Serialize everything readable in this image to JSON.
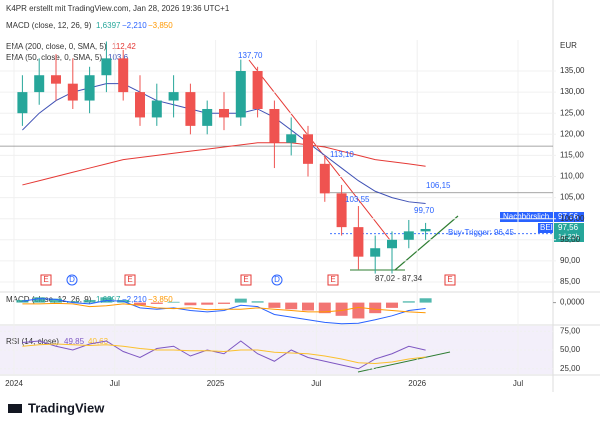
{
  "header": "K4PR erstellt mit TradingView.com, Jan 28, 2026 19:36 UTC+1",
  "currency": "EUR",
  "brand": "TradingView",
  "indicator_legend": {
    "macd": {
      "name": "MACD (close, 12, 26, 9)",
      "values": [
        "1,6397",
        "−2,210",
        "−3,850"
      ]
    },
    "ema200": {
      "name": "EMA (200, close, 0, SMA, 5)",
      "value": "112,42"
    },
    "ema50": {
      "name": "EMA (50, close, 0, SMA, 5)",
      "value": "103,6"
    },
    "rsi": {
      "name": "RSI (14, close)",
      "values": [
        "49,85",
        "40,63"
      ]
    }
  },
  "annotations": [
    "137,70",
    "113,10",
    "106,15",
    "103,55",
    "99,70",
    "Buy-Trigger: 96,45",
    "87,02 - 87,34"
  ],
  "price_badges": {
    "after_hours": "Nachbörslich",
    "after_hours_price": "97,56",
    "symbol": "BEI",
    "last_price": "97,56",
    "countdown": "1d 23h"
  },
  "events": [
    "E",
    "D",
    "E",
    "E",
    "D",
    "E",
    "E"
  ],
  "chart_data": [
    {
      "type": "candlestick",
      "categories": [
        "2024",
        null,
        null,
        null,
        null,
        null,
        "Jul",
        null,
        null,
        null,
        null,
        null,
        "2025",
        null,
        null,
        null,
        null,
        null,
        "Jul",
        null,
        null,
        null,
        null,
        null,
        "2026",
        null,
        null,
        null,
        null,
        null,
        "Jul",
        null,
        null
      ],
      "open": [
        125,
        130,
        134,
        132,
        128,
        134,
        138,
        130,
        124,
        128,
        130,
        122,
        126,
        124,
        135,
        126,
        118,
        120,
        113,
        106,
        98,
        91,
        93,
        95,
        97,
        null,
        null,
        null,
        null,
        null,
        null,
        null,
        null
      ],
      "high": [
        134,
        138,
        139,
        138,
        136,
        142,
        140,
        134,
        132,
        134,
        132,
        128,
        130,
        137.7,
        136,
        128,
        124,
        122,
        115,
        108,
        103,
        96,
        97,
        99.7,
        99,
        null,
        null,
        null,
        null,
        null,
        null,
        null,
        null
      ],
      "low": [
        122,
        127,
        128,
        126,
        125,
        130,
        128,
        122,
        122,
        124,
        120,
        120,
        121,
        122,
        124,
        112,
        115,
        110,
        104,
        96,
        88,
        87,
        87.02,
        93,
        95,
        null,
        null,
        null,
        null,
        null,
        null,
        null,
        null
      ],
      "close": [
        130,
        134,
        132,
        128,
        134,
        138,
        130,
        124,
        128,
        130,
        122,
        126,
        124,
        135,
        126,
        118,
        120,
        113,
        106,
        98,
        91,
        93,
        95,
        97,
        97.56,
        null,
        null,
        null,
        null,
        null,
        null,
        null,
        null
      ],
      "up_color": "#26a69a",
      "down_color": "#ef5350",
      "series": [
        {
          "name": "EMA 200",
          "color": "#e53935",
          "values": [
            108,
            109,
            110,
            111,
            112,
            113,
            114,
            114.5,
            115,
            115.5,
            116,
            116.5,
            117,
            117.5,
            118,
            118,
            118,
            117.5,
            117,
            116,
            115,
            114,
            113.5,
            113,
            112.42,
            null,
            null,
            null,
            null,
            null,
            null,
            null,
            null
          ]
        },
        {
          "name": "EMA 50",
          "color": "#3f51b5",
          "values": [
            121,
            125,
            128,
            130,
            131,
            132,
            132,
            130,
            128,
            127,
            126,
            125,
            125,
            125,
            126,
            124,
            121,
            118,
            115,
            112,
            109,
            106.5,
            105,
            104,
            103.6,
            null,
            null,
            null,
            null,
            null,
            null,
            null,
            null
          ]
        }
      ],
      "levels": [
        117.2,
        106.15,
        96.45
      ],
      "ylim": [
        83.1,
        142.35
      ],
      "yticks": [
        {
          "value": 85,
          "label": "85,00"
        },
        {
          "value": 90,
          "label": "90,00"
        },
        {
          "value": 95,
          "label": "95,00"
        },
        {
          "value": 100,
          "label": "100,00"
        },
        {
          "value": 105,
          "label": "105,00"
        },
        {
          "value": 110,
          "label": "110,00"
        },
        {
          "value": 115,
          "label": "115,00"
        },
        {
          "value": 120,
          "label": "120,00"
        },
        {
          "value": 125,
          "label": "125,00"
        },
        {
          "value": 130,
          "label": "130,00"
        },
        {
          "value": 135,
          "label": "135,00"
        }
      ]
    },
    {
      "type": "macd",
      "values": [
        1,
        2,
        1.5,
        0.5,
        1,
        2,
        1,
        -1,
        -0.5,
        0.3,
        -1,
        -0.8,
        -0.5,
        1.5,
        0.5,
        -2,
        -2.5,
        -3,
        -4,
        -5,
        -6,
        -4,
        -2,
        0.5,
        1.6397,
        null,
        null,
        null,
        null,
        null,
        null,
        null,
        null
      ],
      "series": [
        {
          "name": "MACD",
          "color": "#2962ff",
          "values": [
            0.5,
            1.5,
            1.2,
            0,
            -0.5,
            0.8,
            0.5,
            -2,
            -2.5,
            -2,
            -3,
            -3.5,
            -3,
            -1,
            -1.5,
            -4.5,
            -5.5,
            -6.5,
            -7.5,
            -8,
            -7.8,
            -6.5,
            -5,
            -3,
            -2.21,
            null,
            null,
            null,
            null,
            null,
            null,
            null,
            null
          ]
        },
        {
          "name": "Signal",
          "color": "#ff9800",
          "values": [
            -0.5,
            -0.5,
            -0.3,
            -0.5,
            -1.5,
            -1.2,
            -0.5,
            -1,
            -2,
            -2.3,
            -2,
            -2.7,
            -2.5,
            -2.5,
            -2,
            -2.5,
            -3,
            -3.5,
            -3.5,
            -3,
            -1.8,
            -2.5,
            -3,
            -3.5,
            -3.85,
            null,
            null,
            null,
            null,
            null,
            null,
            null,
            null
          ]
        }
      ],
      "ylim": [
        -8.1,
        2.5
      ],
      "yticks": [
        {
          "value": 0,
          "label": "0,0000"
        }
      ]
    },
    {
      "type": "rsi",
      "series": [
        {
          "name": "RSI",
          "color": "#7e57c2",
          "values": [
            60,
            62,
            55,
            50,
            58,
            62,
            48,
            40,
            52,
            55,
            42,
            50,
            45,
            62,
            45,
            35,
            50,
            40,
            35,
            30,
            25,
            38,
            45,
            55,
            49.85,
            null,
            null,
            null,
            null,
            null,
            null,
            null,
            null
          ]
        },
        {
          "name": "RSI MA",
          "color": "#fbc02d",
          "values": [
            55,
            57,
            58,
            57,
            56,
            57,
            55,
            52,
            50,
            50,
            49,
            49,
            48,
            50,
            50,
            47,
            46,
            45,
            42,
            38,
            33,
            32,
            34,
            38,
            40.63,
            null,
            null,
            null,
            null,
            null,
            null,
            null,
            null
          ]
        }
      ],
      "ylim": [
        18,
        82
      ],
      "yticks": [
        {
          "value": 25,
          "label": "25,00"
        },
        {
          "value": 50,
          "label": "50,00"
        },
        {
          "value": 75,
          "label": "75,00"
        }
      ]
    }
  ]
}
